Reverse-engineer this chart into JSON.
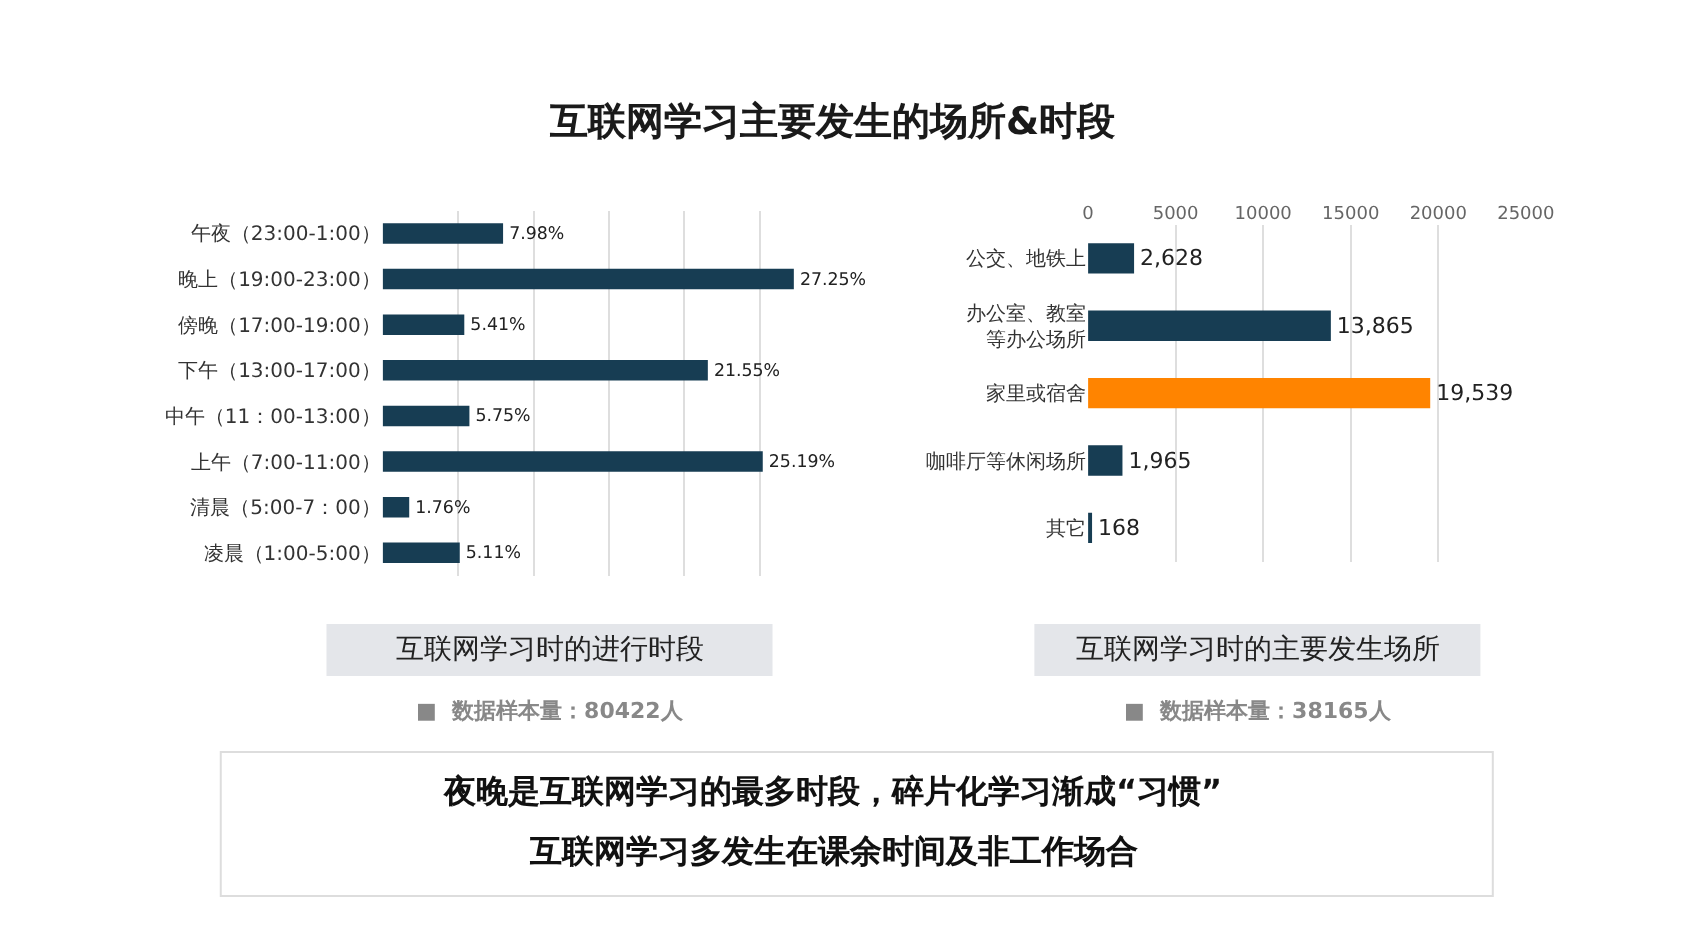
{
  "chart_data": [
    {
      "type": "other",
      "title": "互联网学习主要发生的场所&时段",
      "annotations": [
        "夜晚是互联网学习的最多时段，碎片化学习渐成“习惯”",
        "互联网学习多发生在课余时间及非工作场合"
      ]
    },
    {
      "type": "bar",
      "orientation": "horizontal",
      "title": "互联网学习时的进行时段",
      "annotations": [
        "■  数据样本量：80422人"
      ],
      "categories": [
        "午夜（23:00-1:00）",
        "晚上（19:00-23:00）",
        "傍晚（17:00-19:00）",
        "下午（13:00-17:00）",
        "中午（11：00-13:00）",
        "上午（7:00-11:00）",
        "清晨（5:00-7：00）",
        "凌晨（1:00-5:00）"
      ],
      "values": [
        7.98,
        27.25,
        5.41,
        21.55,
        5.75,
        25.19,
        1.76,
        5.11
      ],
      "value_labels": [
        "7.98%",
        "27.25%",
        "5.41%",
        "21.55%",
        "5.75%",
        "25.19%",
        "1.76%",
        "5.11%"
      ],
      "color": "#173d53",
      "grid": "x",
      "tick_labels": "y"
    },
    {
      "type": "bar",
      "orientation": "horizontal",
      "title": "互联网学习时的主要发生场所",
      "annotations": [
        "■  数据样本量：38165人"
      ],
      "categories": [
        "公交、地铁上",
        "办公室、教室等办公场所",
        "家里或宿舍",
        "咖啡厅等休闲场所",
        "其它"
      ],
      "values": [
        2628,
        13865,
        19539,
        1965,
        168
      ],
      "value_labels": [
        "2,628",
        "13,865",
        "19,539",
        "1,965",
        "168"
      ],
      "colors": [
        "#173d53",
        "#173d53",
        "#ff8400",
        "#173d53",
        "#173d53"
      ],
      "xlim": [
        0,
        25000
      ],
      "xticks": [
        0,
        5000,
        10000,
        15000,
        20000,
        25000
      ],
      "grid": "x"
    }
  ]
}
